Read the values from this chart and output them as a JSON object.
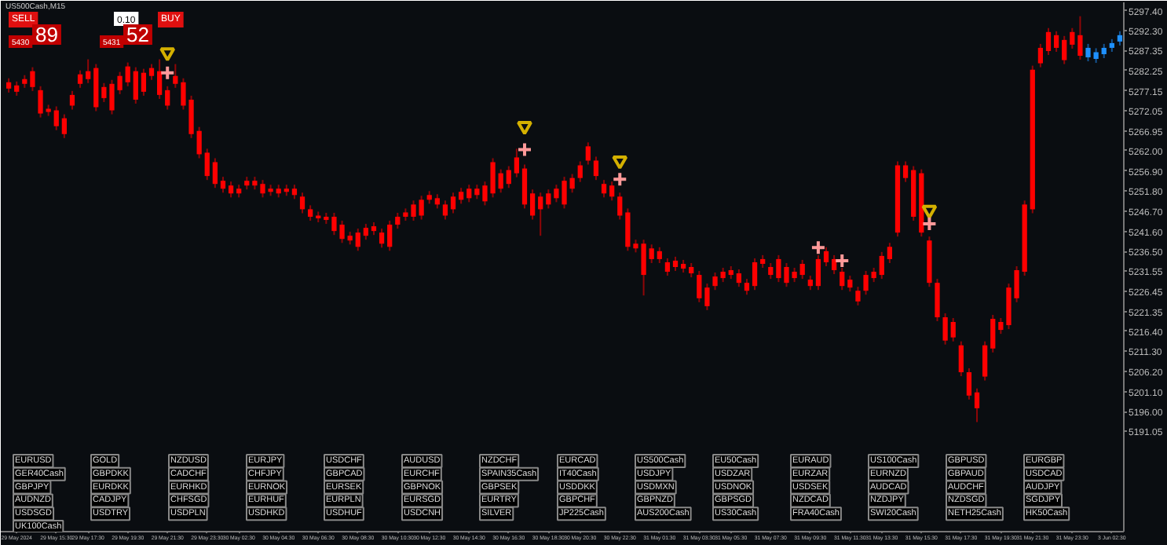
{
  "chart_data": [
    {
      "type": "candlestick",
      "title": "US500Cash,M15",
      "grid": false,
      "categories": [
        null,
        "29 May 2024",
        null,
        null,
        null,
        null,
        "29 May 15:30",
        null,
        null,
        null,
        "29 May 17:30",
        null,
        null,
        null,
        null,
        "29 May 19:30",
        null,
        null,
        null,
        null,
        "29 May 21:30",
        null,
        null,
        null,
        null,
        "29 May 23:30",
        null,
        null,
        null,
        "30 May 02:30",
        null,
        null,
        null,
        null,
        "30 May 04:30",
        null,
        null,
        null,
        null,
        "30 May 06:30",
        null,
        null,
        null,
        null,
        "30 May 08:30",
        null,
        null,
        null,
        null,
        "30 May 10:30",
        null,
        null,
        null,
        "30 May 12:30",
        null,
        null,
        null,
        null,
        "30 May 14:30",
        null,
        null,
        null,
        null,
        "30 May 16:30",
        null,
        null,
        null,
        null,
        "30 May 18:30",
        null,
        null,
        null,
        "30 May 20:30",
        null,
        null,
        null,
        null,
        "30 May 22:30",
        null,
        null,
        null,
        null,
        "31 May 01:30",
        null,
        null,
        null,
        null,
        "31 May 03:30",
        null,
        null,
        null,
        "31 May 05:30",
        null,
        null,
        null,
        null,
        "31 May 07:30",
        null,
        null,
        null,
        null,
        "31 May 09:30",
        null,
        null,
        null,
        null,
        "31 May 11:30",
        null,
        null,
        null,
        "31 May 13:30",
        null,
        null,
        null,
        null,
        "31 May 15:30",
        null,
        null,
        null,
        null,
        "31 May 17:30",
        null,
        null,
        null,
        null,
        "31 May 19:30",
        null,
        null,
        null,
        "31 May 21:30",
        null,
        null,
        null,
        null,
        "31 May 23:30",
        null,
        null,
        null,
        null,
        "3 Jun 02:30",
        null
      ],
      "ohlc": [
        [
          5279.3,
          5280.3,
          5276.7,
          5277.7
        ],
        [
          5278.5,
          5279.5,
          5275.9,
          5276.9
        ],
        [
          5280.1,
          5281.1,
          5277.9,
          5278.9
        ],
        [
          5282.1,
          5283.1,
          5277.1,
          5278.1
        ],
        [
          5277.3,
          5278.3,
          5270.4,
          5271.4
        ],
        [
          5272.6,
          5273.6,
          5270.8,
          5271.8
        ],
        [
          5272.2,
          5273.2,
          5267.2,
          5268.2
        ],
        [
          5270.2,
          5271.2,
          5265.2,
          5266.2
        ],
        [
          5276.1,
          5277.1,
          5272.4,
          5273.4
        ],
        [
          5281.3,
          5282.3,
          5277.9,
          5278.9
        ],
        [
          5282.1,
          5285.1,
          5279.1,
          5280.1
        ],
        [
          5282.9,
          5283.9,
          5272.0,
          5273.0
        ],
        [
          5278.1,
          5279.1,
          5274.3,
          5275.3
        ],
        [
          5278.9,
          5279.9,
          5271.2,
          5272.2
        ],
        [
          5280.9,
          5281.9,
          5276.3,
          5277.3
        ],
        [
          5283.3,
          5284.3,
          5278.3,
          5279.3
        ],
        [
          5282.1,
          5283.1,
          5273.9,
          5274.9
        ],
        [
          5281.7,
          5282.7,
          5275.9,
          5276.9
        ],
        [
          5282.9,
          5283.9,
          5279.9,
          5280.9
        ],
        [
          5282.1,
          5285.1,
          5275.1,
          5276.1
        ],
        [
          5277.3,
          5278.3,
          5272.4,
          5273.4
        ],
        [
          5280.9,
          5283.9,
          5277.9,
          5278.9
        ],
        [
          5279.3,
          5280.3,
          5272.4,
          5273.4
        ],
        [
          5274.9,
          5275.9,
          5265.2,
          5266.2
        ],
        [
          5267.0,
          5268.0,
          5260.1,
          5261.1
        ],
        [
          5261.5,
          5262.5,
          5254.6,
          5255.6
        ],
        [
          5259.1,
          5260.1,
          5252.6,
          5253.6
        ],
        [
          5254.4,
          5255.4,
          5251.4,
          5252.4
        ],
        [
          5253.2,
          5254.2,
          5250.2,
          5251.2
        ],
        [
          5252.4,
          5253.4,
          5250.2,
          5251.2
        ],
        [
          5254.4,
          5255.4,
          5252.2,
          5253.2
        ],
        [
          5254.4,
          5255.4,
          5252.2,
          5253.2
        ],
        [
          5253.6,
          5254.6,
          5250.2,
          5251.2
        ],
        [
          5252.4,
          5253.4,
          5250.6,
          5251.6
        ],
        [
          5252.4,
          5253.4,
          5250.2,
          5251.2
        ],
        [
          5252.4,
          5253.4,
          5250.6,
          5251.6
        ],
        [
          5252.4,
          5253.4,
          5249.8,
          5250.8
        ],
        [
          5250.4,
          5251.4,
          5246.2,
          5247.2
        ],
        [
          5247.2,
          5248.2,
          5244.3,
          5245.3
        ],
        [
          5245.6,
          5246.6,
          5243.9,
          5244.9
        ],
        [
          5245.3,
          5246.3,
          5243.5,
          5244.5
        ],
        [
          5245.3,
          5246.3,
          5240.7,
          5241.7
        ],
        [
          5243.3,
          5244.3,
          5238.7,
          5239.7
        ],
        [
          5240.5,
          5241.5,
          5238.3,
          5239.3
        ],
        [
          5241.3,
          5242.3,
          5236.7,
          5237.7
        ],
        [
          5242.5,
          5243.5,
          5239.5,
          5240.5
        ],
        [
          5242.9,
          5243.9,
          5240.7,
          5241.7
        ],
        [
          5241.3,
          5242.3,
          5237.5,
          5238.5
        ],
        [
          5243.3,
          5244.3,
          5236.7,
          5237.7
        ],
        [
          5245.3,
          5246.3,
          5242.3,
          5243.3
        ],
        [
          5246.4,
          5247.4,
          5244.3,
          5245.3
        ],
        [
          5248.4,
          5249.4,
          5244.3,
          5245.3
        ],
        [
          5249.6,
          5250.6,
          5244.6,
          5245.6
        ],
        [
          5250.8,
          5251.8,
          5248.6,
          5249.6
        ],
        [
          5250.0,
          5251.0,
          5247.4,
          5248.4
        ],
        [
          5248.4,
          5249.4,
          5244.6,
          5245.6
        ],
        [
          5250.4,
          5251.4,
          5246.2,
          5247.2
        ],
        [
          5251.6,
          5252.6,
          5248.6,
          5249.6
        ],
        [
          5252.4,
          5253.4,
          5249.0,
          5250.0
        ],
        [
          5252.4,
          5253.4,
          5249.8,
          5250.8
        ],
        [
          5253.2,
          5254.2,
          5248.2,
          5249.2
        ],
        [
          5259.1,
          5260.1,
          5250.2,
          5251.2
        ],
        [
          5256.3,
          5257.3,
          5251.4,
          5252.4
        ],
        [
          5257.1,
          5258.1,
          5252.6,
          5253.6
        ],
        [
          5260.3,
          5262.5,
          5255.3,
          5256.3
        ],
        [
          5257.5,
          5258.5,
          5247.4,
          5248.4
        ],
        [
          5251.2,
          5252.2,
          5244.6,
          5245.6
        ],
        [
          5250.4,
          5251.4,
          5240.5,
          5247.2
        ],
        [
          5251.2,
          5252.2,
          5247.4,
          5248.4
        ],
        [
          5252.4,
          5253.4,
          5249.0,
          5250.0
        ],
        [
          5254.4,
          5255.4,
          5247.4,
          5248.4
        ],
        [
          5255.1,
          5256.1,
          5251.4,
          5252.4
        ],
        [
          5258.3,
          5259.3,
          5254.1,
          5255.1
        ],
        [
          5263.1,
          5264.1,
          5258.5,
          5259.5
        ],
        [
          5259.5,
          5260.5,
          5254.6,
          5255.6
        ],
        [
          5253.6,
          5254.6,
          5250.2,
          5251.2
        ],
        [
          5253.2,
          5254.2,
          5249.4,
          5250.4
        ],
        [
          5250.4,
          5251.4,
          5244.6,
          5245.6
        ],
        [
          5246.4,
          5247.4,
          5236.7,
          5237.7
        ],
        [
          5238.5,
          5239.5,
          5236.3,
          5237.3
        ],
        [
          5238.5,
          5239.5,
          5225.4,
          5230.6
        ],
        [
          5237.3,
          5238.3,
          5233.6,
          5234.6
        ],
        [
          5236.6,
          5237.6,
          5233.6,
          5234.6
        ],
        [
          5233.8,
          5234.8,
          5230.4,
          5231.4
        ],
        [
          5234.2,
          5235.2,
          5231.6,
          5232.6
        ],
        [
          5233.4,
          5234.4,
          5231.2,
          5232.2
        ],
        [
          5232.6,
          5233.6,
          5230.0,
          5231.0
        ],
        [
          5230.6,
          5231.6,
          5223.7,
          5224.7
        ],
        [
          5227.4,
          5228.4,
          5221.7,
          5222.7
        ],
        [
          5230.2,
          5231.2,
          5226.8,
          5227.8
        ],
        [
          5231.4,
          5232.4,
          5228.8,
          5229.8
        ],
        [
          5231.8,
          5232.8,
          5229.6,
          5230.6
        ],
        [
          5231.0,
          5232.0,
          5227.6,
          5228.6
        ],
        [
          5228.6,
          5229.6,
          5225.6,
          5226.6
        ],
        [
          5233.8,
          5234.8,
          5226.8,
          5227.8
        ],
        [
          5234.6,
          5235.6,
          5232.4,
          5233.4
        ],
        [
          5232.6,
          5233.6,
          5229.6,
          5230.6
        ],
        [
          5234.6,
          5235.6,
          5228.8,
          5229.8
        ],
        [
          5232.6,
          5233.6,
          5227.6,
          5228.6
        ],
        [
          5231.4,
          5232.4,
          5228.8,
          5229.8
        ],
        [
          5233.4,
          5234.4,
          5229.6,
          5230.6
        ],
        [
          5229.4,
          5230.4,
          5226.8,
          5227.8
        ],
        [
          5234.6,
          5235.6,
          5226.8,
          5227.8
        ],
        [
          5236.6,
          5237.6,
          5232.8,
          5233.8
        ],
        [
          5234.6,
          5235.6,
          5230.8,
          5231.8
        ],
        [
          5231.4,
          5232.4,
          5226.8,
          5227.8
        ],
        [
          5229.4,
          5230.4,
          5226.4,
          5227.4
        ],
        [
          5226.6,
          5227.6,
          5222.9,
          5223.9
        ],
        [
          5230.6,
          5231.6,
          5225.6,
          5226.6
        ],
        [
          5231.4,
          5232.4,
          5228.8,
          5229.8
        ],
        [
          5235.4,
          5236.4,
          5229.6,
          5230.6
        ],
        [
          5237.7,
          5238.7,
          5233.6,
          5234.6
        ],
        [
          5258.3,
          5259.3,
          5240.3,
          5241.3
        ],
        [
          5258.3,
          5259.3,
          5254.1,
          5255.1
        ],
        [
          5257.1,
          5258.1,
          5244.3,
          5245.3
        ],
        [
          5256.3,
          5257.3,
          5240.3,
          5241.3
        ],
        [
          5239.3,
          5240.3,
          5227.6,
          5228.6
        ],
        [
          5228.6,
          5229.6,
          5218.9,
          5219.9
        ],
        [
          5219.9,
          5220.9,
          5213.0,
          5214.0
        ],
        [
          5218.7,
          5219.7,
          5213.8,
          5214.8
        ],
        [
          5212.8,
          5213.8,
          5205.0,
          5206.0
        ],
        [
          5206.0,
          5207.0,
          5199.1,
          5200.1
        ],
        [
          5200.9,
          5201.9,
          5193.4,
          5196.9
        ],
        [
          5212.8,
          5213.8,
          5203.9,
          5204.9
        ],
        [
          5219.5,
          5220.5,
          5211.0,
          5212.0
        ],
        [
          5218.7,
          5219.7,
          5215.7,
          5216.7
        ],
        [
          5227.4,
          5228.4,
          5216.9,
          5217.9
        ],
        [
          5231.8,
          5232.8,
          5223.7,
          5224.7
        ],
        [
          5248.4,
          5249.4,
          5230.4,
          5231.4
        ],
        [
          5282.5,
          5283.5,
          5246.2,
          5247.2
        ],
        [
          5288.0,
          5289.0,
          5283.1,
          5284.1
        ],
        [
          5292.0,
          5293.0,
          5286.2,
          5287.2
        ],
        [
          5291.2,
          5292.2,
          5287.0,
          5288.0
        ],
        [
          5290.0,
          5291.0,
          5283.9,
          5284.9
        ],
        [
          5292.0,
          5293.0,
          5287.8,
          5288.8
        ],
        [
          5291.2,
          5296.0,
          5285.0,
          5286.0
        ],
        [
          5285.6,
          5289.0,
          5284.6,
          5288.0
        ],
        [
          5285.2,
          5287.9,
          5284.2,
          5286.9
        ],
        [
          5286.4,
          5289.0,
          5285.4,
          5288.0
        ],
        [
          5288.0,
          5290.2,
          5287.0,
          5289.2
        ],
        [
          5289.6,
          5292.2,
          5288.6,
          5291.2
        ]
      ],
      "colors": [
        "#ff0000",
        "#ff0000",
        "#ff0000",
        "#ff0000",
        "#ff0000",
        "#ff0000",
        "#ff0000",
        "#ff0000",
        "#ff0000",
        "#ff0000",
        "#ff0000",
        "#ff0000",
        "#ff0000",
        "#ff0000",
        "#ff0000",
        "#ff0000",
        "#ff0000",
        "#ff0000",
        "#ff0000",
        "#ff0000",
        "#ff0000",
        "#ff0000",
        "#ff0000",
        "#ff0000",
        "#ff0000",
        "#ff0000",
        "#ff0000",
        "#ff0000",
        "#ff0000",
        "#ff0000",
        "#ff0000",
        "#ff0000",
        "#ff0000",
        "#ff0000",
        "#ff0000",
        "#ff0000",
        "#ff0000",
        "#ff0000",
        "#ff0000",
        "#ff0000",
        "#ff0000",
        "#ff0000",
        "#ff0000",
        "#ff0000",
        "#ff0000",
        "#ff0000",
        "#ff0000",
        "#ff0000",
        "#ff0000",
        "#ff0000",
        "#ff0000",
        "#ff0000",
        "#ff0000",
        "#ff0000",
        "#ff0000",
        "#ff0000",
        "#ff0000",
        "#ff0000",
        "#ff0000",
        "#ff0000",
        "#ff0000",
        "#ff0000",
        "#ff0000",
        "#ff0000",
        "#ff0000",
        "#ff0000",
        "#ff0000",
        "#ff0000",
        "#ff0000",
        "#ff0000",
        "#ff0000",
        "#ff0000",
        "#ff0000",
        "#ff0000",
        "#ff0000",
        "#ff0000",
        "#ff0000",
        "#ff0000",
        "#ff0000",
        "#ff0000",
        "#ff0000",
        "#ff0000",
        "#ff0000",
        "#ff0000",
        "#ff0000",
        "#ff0000",
        "#ff0000",
        "#ff0000",
        "#ff0000",
        "#ff0000",
        "#ff0000",
        "#ff0000",
        "#ff0000",
        "#ff0000",
        "#ff0000",
        "#ff0000",
        "#ff0000",
        "#ff0000",
        "#ff0000",
        "#ff0000",
        "#ff0000",
        "#ff0000",
        "#ff0000",
        "#ff0000",
        "#ff0000",
        "#ff0000",
        "#ff0000",
        "#ff0000",
        "#ff0000",
        "#ff0000",
        "#ff0000",
        "#ff0000",
        "#ff0000",
        "#ff0000",
        "#ff0000",
        "#ff0000",
        "#ff0000",
        "#ff0000",
        "#ff0000",
        "#ff0000",
        "#ff0000",
        "#ff0000",
        "#ff0000",
        "#ff0000",
        "#ff0000",
        "#ff0000",
        "#ff0000",
        "#ff0000",
        "#ff0000",
        "#ff0000",
        "#ff0000",
        "#ff0000",
        "#ff0000",
        "#ff0000",
        "#ff0000",
        "#ff0000",
        "#1e90ff",
        "#1e90ff",
        "#1e90ff",
        "#1e90ff",
        "#1e90ff"
      ],
      "series": [
        {
          "type": "scatter",
          "marker": "triangle",
          "color": "#d4b000",
          "values": [
            null,
            null,
            null,
            null,
            null,
            null,
            null,
            null,
            null,
            null,
            null,
            null,
            null,
            null,
            null,
            null,
            null,
            null,
            null,
            null,
            5286.8,
            null,
            null,
            null,
            null,
            null,
            null,
            null,
            null,
            null,
            null,
            null,
            null,
            null,
            null,
            null,
            null,
            null,
            null,
            null,
            null,
            null,
            null,
            null,
            null,
            null,
            null,
            null,
            null,
            null,
            null,
            null,
            null,
            null,
            null,
            null,
            null,
            null,
            null,
            null,
            null,
            null,
            null,
            null,
            null,
            5268.2,
            null,
            null,
            null,
            null,
            null,
            null,
            null,
            null,
            null,
            null,
            null,
            5259.5,
            null,
            null,
            null,
            null,
            null,
            null,
            null,
            null,
            null,
            null,
            null,
            null,
            null,
            null,
            null,
            null,
            null,
            null,
            null,
            null,
            null,
            null,
            null,
            null,
            null,
            null,
            null,
            null,
            null,
            null,
            null,
            null,
            null,
            null,
            null,
            null,
            null,
            null,
            5247.0,
            null,
            null,
            null,
            null,
            null,
            null,
            null,
            null,
            null,
            null,
            null,
            null,
            null,
            null,
            null,
            null,
            null,
            null,
            null,
            null,
            null,
            null,
            null,
            null
          ]
        },
        {
          "type": "scatter",
          "marker": "cross",
          "color": "#ff9999",
          "values": [
            null,
            null,
            null,
            null,
            null,
            null,
            null,
            null,
            null,
            null,
            null,
            null,
            null,
            null,
            null,
            null,
            null,
            null,
            null,
            null,
            5281.7,
            null,
            null,
            null,
            null,
            null,
            null,
            null,
            null,
            null,
            null,
            null,
            null,
            null,
            null,
            null,
            null,
            null,
            null,
            null,
            null,
            null,
            null,
            null,
            null,
            null,
            null,
            null,
            null,
            null,
            null,
            null,
            null,
            null,
            null,
            null,
            null,
            null,
            null,
            null,
            null,
            null,
            null,
            null,
            null,
            5262.3,
            null,
            null,
            null,
            null,
            null,
            null,
            null,
            null,
            null,
            null,
            null,
            5254.8,
            null,
            null,
            null,
            null,
            null,
            null,
            null,
            null,
            null,
            null,
            null,
            null,
            null,
            null,
            null,
            null,
            null,
            null,
            null,
            null,
            null,
            null,
            null,
            null,
            5237.5,
            null,
            null,
            5234.2,
            null,
            null,
            null,
            null,
            null,
            null,
            null,
            null,
            null,
            null,
            5243.5,
            null,
            null,
            null,
            null,
            null,
            null,
            null,
            null,
            null,
            null,
            null,
            null,
            null,
            null,
            null,
            null,
            null,
            null,
            null,
            null,
            null,
            null,
            null,
            null
          ]
        }
      ],
      "ylim": [
        5165.7,
        5299.5
      ],
      "yticks": [
        {
          "value": 5297.4,
          "label": "5297.40"
        },
        {
          "value": 5292.3,
          "label": "5292.30"
        },
        {
          "value": 5287.35,
          "label": "5287.35"
        },
        {
          "value": 5282.25,
          "label": "5282.25"
        },
        {
          "value": 5277.15,
          "label": "5277.15"
        },
        {
          "value": 5272.05,
          "label": "5272.05"
        },
        {
          "value": 5266.95,
          "label": "5266.95"
        },
        {
          "value": 5262,
          "label": "5262.00"
        },
        {
          "value": 5256.9,
          "label": "5256.90"
        },
        {
          "value": 5251.8,
          "label": "5251.80"
        },
        {
          "value": 5246.7,
          "label": "5246.70"
        },
        {
          "value": 5241.6,
          "label": "5241.60"
        },
        {
          "value": 5236.5,
          "label": "5236.50"
        },
        {
          "value": 5231.55,
          "label": "5231.55"
        },
        {
          "value": 5226.45,
          "label": "5226.45"
        },
        {
          "value": 5221.35,
          "label": "5221.35"
        },
        {
          "value": 5216.4,
          "label": "5216.40"
        },
        {
          "value": 5211.3,
          "label": "5211.30"
        },
        {
          "value": 5206.2,
          "label": "5206.20"
        },
        {
          "value": 5201.1,
          "label": "5201.10"
        },
        {
          "value": 5196,
          "label": "5196.00"
        },
        {
          "value": 5191.05,
          "label": "5191.05"
        }
      ]
    },
    {
      "type": "other",
      "annotations": [
        "SELL",
        "0.10",
        "BUY",
        "5430",
        "89",
        "5431",
        "52"
      ]
    },
    {
      "type": "other",
      "annotations": [
        "EURUSD",
        "GOLD",
        "NZDUSD",
        "EURJPY",
        "USDCHF",
        "AUDUSD",
        "NZDCHF",
        "EURCAD",
        "US500Cash",
        "EU50Cash",
        "EURAUD",
        "US100Cash",
        "GBPUSD",
        "EURGBP",
        "GER40Cash",
        "GBPDKK",
        "CADCHF",
        "CHFJPY",
        "GBPCAD",
        "EURCHF",
        "SPAIN35Cash",
        "IT40Cash",
        "USDJPY",
        "USDZAR",
        "EURZAR",
        "EURNZD",
        "GBPAUD",
        "USDCAD",
        "GBPJPY",
        "EURDKK",
        "EURHKD",
        "EURNOK",
        "EURSEK",
        "GBPNOK",
        "GBPSEK",
        "USDDKK",
        "USDMXN",
        "USDNOK",
        "USDSEK",
        "AUDCAD",
        "AUDCHF",
        "AUDJPY",
        "AUDNZD",
        "CADJPY",
        "CHFSGD",
        "EURHUF",
        "EURPLN",
        "EURSGD",
        "EURTRY",
        "GBPCHF",
        "GBPNZD",
        "GBPSGD",
        "NZDCAD",
        "NZDJPY",
        "NZDSGD",
        "SGDJPY",
        "USDSGD",
        "USDTRY",
        "USDPLN",
        "USDHKD",
        "USDHUF",
        "USDCNH",
        "SILVER",
        "JP225Cash",
        "AUS200Cash",
        "US30Cash",
        "FRA40Cash",
        "SWI20Cash",
        "NETH25Cash",
        "HK50Cash",
        "UK100Cash"
      ]
    }
  ]
}
